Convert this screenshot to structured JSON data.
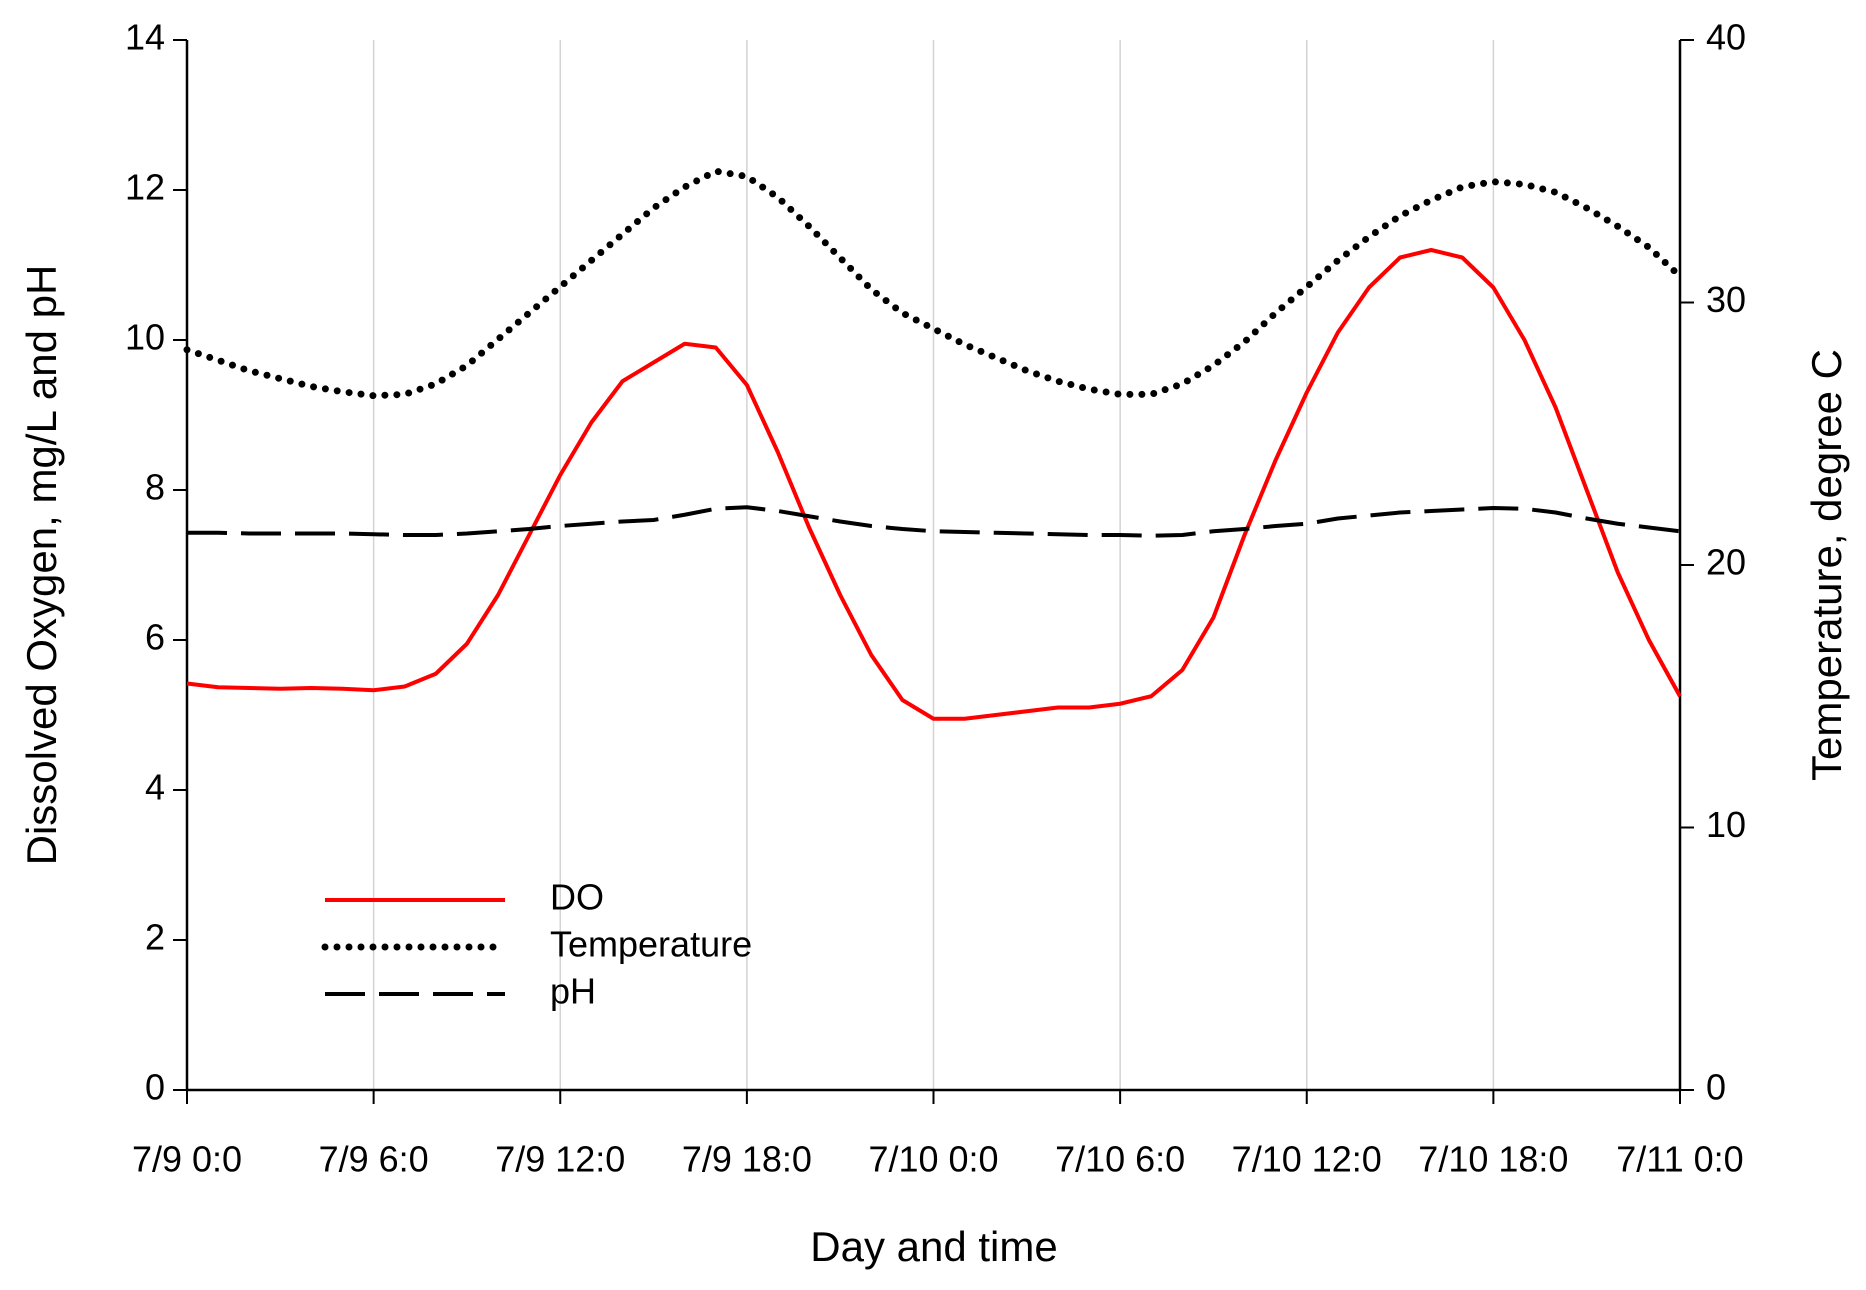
{
  "chart_data": {
    "type": "line",
    "xlabel": "Day and time",
    "ylabel": "Dissolved Oxygen, mg/L and pH",
    "y2label": "Temperature, degree C",
    "x": [
      0,
      1,
      2,
      3,
      4,
      5,
      6,
      7,
      8,
      9,
      10,
      11,
      12,
      13,
      14,
      15,
      16,
      17,
      18,
      19,
      20,
      21,
      22,
      23,
      24,
      25,
      26,
      27,
      28,
      29,
      30,
      31,
      32,
      33,
      34,
      35,
      36,
      37,
      38,
      39,
      40,
      41,
      42,
      43,
      44,
      45,
      46,
      47,
      48
    ],
    "xlim": [
      0,
      48
    ],
    "xticks": [
      {
        "value": 0,
        "label": "7/9 0:0"
      },
      {
        "value": 6,
        "label": "7/9 6:0"
      },
      {
        "value": 12,
        "label": "7/9 12:0"
      },
      {
        "value": 18,
        "label": "7/9 18:0"
      },
      {
        "value": 24,
        "label": "7/10 0:0"
      },
      {
        "value": 30,
        "label": "7/10 6:0"
      },
      {
        "value": 36,
        "label": "7/10 12:0"
      },
      {
        "value": 42,
        "label": "7/10 18:0"
      },
      {
        "value": 48,
        "label": "7/11 0:0"
      }
    ],
    "ylim": [
      0,
      14
    ],
    "yticks": [
      0,
      2,
      4,
      6,
      8,
      10,
      12,
      14
    ],
    "y2lim": [
      0,
      40
    ],
    "y2ticks": [
      0,
      10,
      20,
      30,
      40
    ],
    "grid": "x",
    "legend": "lower left",
    "series": [
      {
        "name": "DO",
        "color": "#ff0000",
        "dash": "solid",
        "values": [
          5.42,
          5.37,
          5.36,
          5.35,
          5.36,
          5.35,
          5.33,
          5.38,
          5.55,
          5.95,
          6.6,
          7.4,
          8.2,
          8.9,
          9.45,
          9.7,
          9.95,
          9.9,
          9.4,
          8.5,
          7.5,
          6.6,
          5.8,
          5.2,
          4.95,
          4.95,
          5.0,
          5.05,
          5.1,
          5.1,
          5.15,
          5.25,
          5.6,
          6.3,
          7.4,
          8.4,
          9.3,
          10.1,
          10.7,
          11.1,
          11.2,
          11.1,
          10.7,
          10.0,
          9.1,
          8.0,
          6.9,
          6.0,
          5.25
        ]
      },
      {
        "name": "Temperature",
        "color": "#000000",
        "dash": "dotted",
        "axis": "y2",
        "values": [
          28.2,
          27.8,
          27.4,
          27.1,
          26.8,
          26.6,
          26.45,
          26.5,
          26.9,
          27.6,
          28.6,
          29.6,
          30.6,
          31.6,
          32.6,
          33.6,
          34.4,
          35.0,
          34.8,
          34.0,
          32.9,
          31.7,
          30.5,
          29.6,
          29.0,
          28.4,
          27.9,
          27.4,
          27.0,
          26.7,
          26.5,
          26.5,
          26.9,
          27.6,
          28.5,
          29.6,
          30.6,
          31.6,
          32.5,
          33.3,
          33.9,
          34.4,
          34.6,
          34.5,
          34.2,
          33.6,
          32.9,
          32.1,
          31.0
        ]
      },
      {
        "name": "pH",
        "color": "#000000",
        "dash": "dashed",
        "values": [
          7.43,
          7.43,
          7.42,
          7.42,
          7.42,
          7.42,
          7.41,
          7.4,
          7.4,
          7.42,
          7.45,
          7.48,
          7.52,
          7.55,
          7.58,
          7.6,
          7.67,
          7.75,
          7.77,
          7.72,
          7.65,
          7.58,
          7.52,
          7.48,
          7.45,
          7.44,
          7.43,
          7.42,
          7.41,
          7.4,
          7.4,
          7.39,
          7.4,
          7.45,
          7.48,
          7.52,
          7.55,
          7.62,
          7.66,
          7.7,
          7.72,
          7.74,
          7.76,
          7.75,
          7.7,
          7.62,
          7.55,
          7.5,
          7.45
        ]
      }
    ]
  }
}
